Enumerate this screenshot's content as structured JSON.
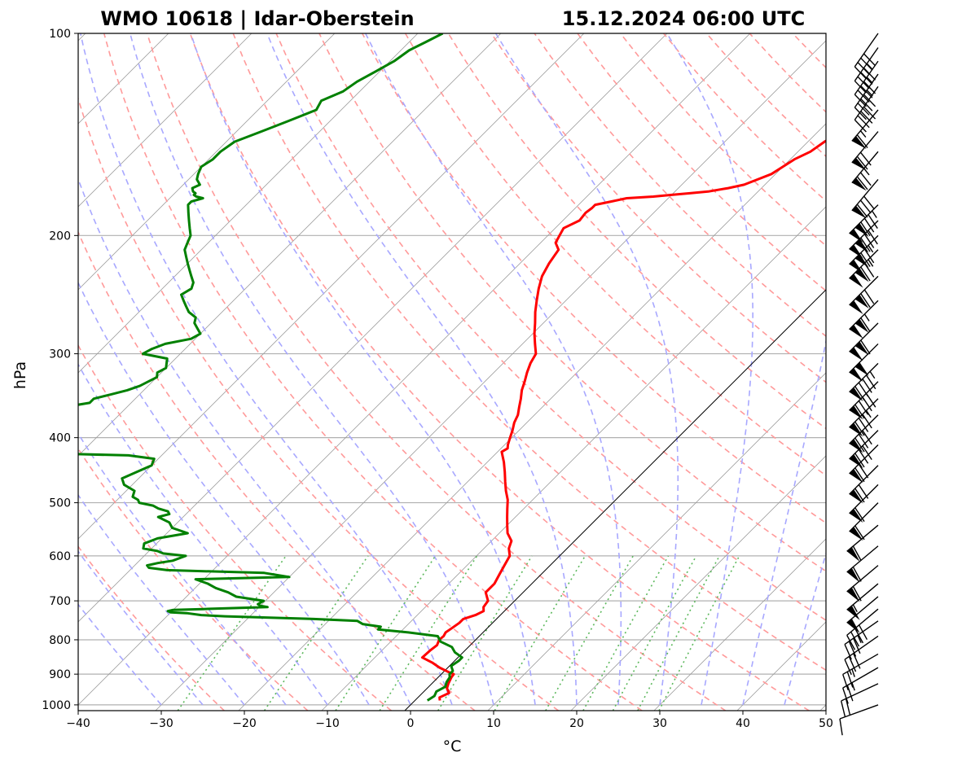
{
  "title_left": "WMO 10618 | Idar-Oberstein",
  "title_right": "15.12.2024 06:00 UTC",
  "chart_data": {
    "type": "line",
    "subtype": "skew-T log-p sounding",
    "xlabel": "°C",
    "ylabel": "hPa",
    "xlim": [
      -40,
      50
    ],
    "ylim": [
      1020,
      100
    ],
    "y_scale": "log",
    "x_ticks": [
      "−40",
      "−30",
      "−20",
      "−10",
      "0",
      "10",
      "20",
      "30",
      "40",
      "50"
    ],
    "x_tick_values": [
      -40,
      -30,
      -20,
      -10,
      0,
      10,
      20,
      30,
      40,
      50
    ],
    "y_ticks": [
      "100",
      "200",
      "300",
      "400",
      "500",
      "600",
      "700",
      "800",
      "900",
      "1000"
    ],
    "y_tick_values": [
      100,
      200,
      300,
      400,
      500,
      600,
      700,
      800,
      900,
      1000
    ],
    "grid": "horizontal isobars",
    "background_lines": {
      "isotherms": "gray solid, skewed",
      "dry_adiabats": "red dashed",
      "moist_adiabats": "blue dashed",
      "mixing_ratio": "green dotted",
      "zero_isotherm": "black solid"
    },
    "series": [
      {
        "color": "#ff0000",
        "p": [
          985,
          975,
          960,
          945,
          930,
          910,
          900,
          895,
          880,
          865,
          850,
          830,
          815,
          800,
          790,
          780,
          770,
          755,
          745,
          735,
          725,
          715,
          700,
          680,
          660,
          640,
          620,
          600,
          585,
          570,
          555,
          540,
          525,
          510,
          495,
          480,
          465,
          450,
          435,
          420,
          415,
          410,
          400,
          390,
          380,
          370,
          360,
          350,
          340,
          330,
          320,
          310,
          300,
          290,
          280,
          270,
          260,
          250,
          240,
          230,
          220,
          210,
          205,
          200,
          195,
          190,
          185,
          182,
          180,
          178,
          176,
          175,
          174,
          173,
          172,
          170,
          168,
          165,
          162,
          158,
          154,
          150,
          145,
          140,
          135,
          130,
          126,
          122,
          118,
          114,
          110,
          106,
          103,
          100
        ],
        "T": [
          3.0,
          2.6,
          3.2,
          2.4,
          2.0,
          1.6,
          1.5,
          0.8,
          -1.0,
          -2.5,
          -4.3,
          -4.2,
          -4.0,
          -4.4,
          -4.3,
          -4.5,
          -4.3,
          -4.0,
          -4.0,
          -3.0,
          -2.5,
          -3.0,
          -3.2,
          -4.5,
          -4.5,
          -5.0,
          -5.5,
          -6.0,
          -7.0,
          -7.6,
          -9.0,
          -10.0,
          -11.0,
          -12.0,
          -13.0,
          -14.3,
          -15.5,
          -16.7,
          -18.0,
          -19.5,
          -19.2,
          -19.6,
          -20.2,
          -20.8,
          -21.5,
          -22.0,
          -22.8,
          -23.6,
          -24.5,
          -25.2,
          -26.0,
          -26.7,
          -27.2,
          -28.5,
          -29.8,
          -31.0,
          -32.3,
          -33.5,
          -34.7,
          -35.8,
          -36.5,
          -37.0,
          -38.2,
          -38.6,
          -39.0,
          -38.0,
          -38.2,
          -38.0,
          -38.0,
          -36.5,
          -35.0,
          -32.0,
          -30.0,
          -28.0,
          -26.0,
          -24.0,
          -22.5,
          -21.5,
          -20.5,
          -20.0,
          -19.5,
          -18.5,
          -18.0,
          -17.0,
          -16.5,
          -16.0,
          -15.5,
          -16.0,
          -15.5,
          -16.0,
          -15.0,
          -15.0,
          -14.5,
          -13.0
        ]
      },
      {
        "color": "#008000",
        "p": [
          985,
          970,
          955,
          940,
          925,
          910,
          900,
          890,
          875,
          860,
          850,
          835,
          820,
          805,
          790,
          780,
          772,
          765,
          758,
          750,
          745,
          738,
          735,
          730,
          728,
          725,
          722,
          720,
          715,
          712,
          708,
          700,
          690,
          680,
          670,
          660,
          650,
          645,
          640,
          636,
          630,
          625,
          620,
          615,
          610,
          600,
          595,
          590,
          585,
          575,
          565,
          555,
          545,
          535,
          525,
          520,
          515,
          510,
          505,
          500,
          495,
          490,
          480,
          470,
          460,
          450,
          440,
          430,
          425,
          420,
          415,
          413,
          410,
          405,
          400,
          395,
          390,
          385,
          380,
          375,
          370,
          365,
          360,
          355,
          350,
          345,
          340,
          335,
          330,
          325,
          320,
          315,
          310,
          305,
          300,
          295,
          290,
          285,
          280,
          275,
          270,
          265,
          260,
          255,
          250,
          245,
          240,
          235,
          230,
          225,
          220,
          215,
          210,
          205,
          200,
          195,
          190,
          185,
          180,
          178,
          176,
          175,
          174,
          173,
          172,
          170,
          168,
          165,
          162,
          158,
          154,
          150,
          145,
          140,
          135,
          130,
          126,
          122,
          118,
          114,
          110,
          106,
          103,
          100
        ],
        "T": [
          1.5,
          1.8,
          1.5,
          2.0,
          1.6,
          1.4,
          1.0,
          1.0,
          0.2,
          0.5,
          0.5,
          -1.0,
          -2.0,
          -4.0,
          -5.0,
          -9.0,
          -13.0,
          -13.0,
          -15.5,
          -16.5,
          -22.0,
          -33.0,
          -36.0,
          -38.0,
          -40.0,
          -40.5,
          -40.0,
          -36.5,
          -29.0,
          -30.0,
          -30.5,
          -30.2,
          -34.0,
          -35.5,
          -37.5,
          -39.0,
          -41.0,
          -30.0,
          -32.0,
          -33.5,
          -45.5,
          -48.0,
          -48.5,
          -47.5,
          -46.0,
          -45.0,
          -48.0,
          -49.0,
          -51.0,
          -51.5,
          -50.5,
          -47.5,
          -50.0,
          -51.0,
          -53.0,
          -52.0,
          -52.5,
          -54.0,
          -55.0,
          -57.0,
          -57.5,
          -58.5,
          -59.0,
          -61.0,
          -62.0,
          -61.0,
          -60.0,
          -60.5,
          -64.0,
          -82.0,
          -86.0,
          -86.5,
          -87.0,
          -85.0,
          -86.0,
          -84.0,
          -86.0,
          -86.0,
          -85.5,
          -84.0,
          -79.0,
          -78.5,
          -77.5,
          -75.0,
          -75.0,
          -73.5,
          -72.0,
          -71.0,
          -70.5,
          -70.0,
          -70.5,
          -70.0,
          -70.5,
          -71.0,
          -74.5,
          -74.0,
          -73.0,
          -70.5,
          -70.0,
          -71.0,
          -72.0,
          -72.5,
          -74.0,
          -75.0,
          -76.0,
          -77.0,
          -76.5,
          -77.0,
          -78.0,
          -79.0,
          -80.0,
          -81.0,
          -82.0,
          -82.5,
          -83.0,
          -84.0,
          -85.0,
          -86.0,
          -87.0,
          -87.0,
          -86.0,
          -87.0,
          -87.5,
          -87.5,
          -88.0,
          -88.5,
          -88.0,
          -89.0,
          -89.5,
          -90.0,
          -89.5,
          -89.5,
          -89.0,
          -87.0,
          -85.0,
          -83.0,
          -83.5,
          -82.0,
          -81.5,
          -80.5,
          -79.5,
          -79.0,
          -78.0,
          -77.0
        ]
      }
    ],
    "wind_barbs": {
      "p": [
        1000,
        930,
        880,
        840,
        790,
        750,
        720,
        690,
        660,
        620,
        580,
        540,
        500,
        470,
        440,
        410,
        390,
        370,
        350,
        330,
        310,
        290,
        270,
        250,
        230,
        210,
        200,
        190,
        180,
        165,
        150,
        140,
        130,
        120,
        115,
        110,
        105,
        100
      ],
      "speed_kt": [
        10,
        20,
        25,
        25,
        30,
        35,
        40,
        50,
        55,
        60,
        60,
        60,
        60,
        60,
        70,
        70,
        80,
        80,
        85,
        90,
        95,
        100,
        110,
        115,
        120,
        125,
        125,
        130,
        135,
        80,
        75,
        70,
        65,
        40,
        45,
        45,
        45,
        40
      ],
      "direction_deg": [
        250,
        245,
        240,
        240,
        235,
        235,
        230,
        230,
        230,
        230,
        230,
        230,
        225,
        225,
        225,
        225,
        225,
        225,
        225,
        225,
        225,
        225,
        225,
        225,
        225,
        225,
        225,
        225,
        225,
        220,
        220,
        220,
        220,
        215,
        215,
        215,
        215,
        215
      ]
    }
  }
}
